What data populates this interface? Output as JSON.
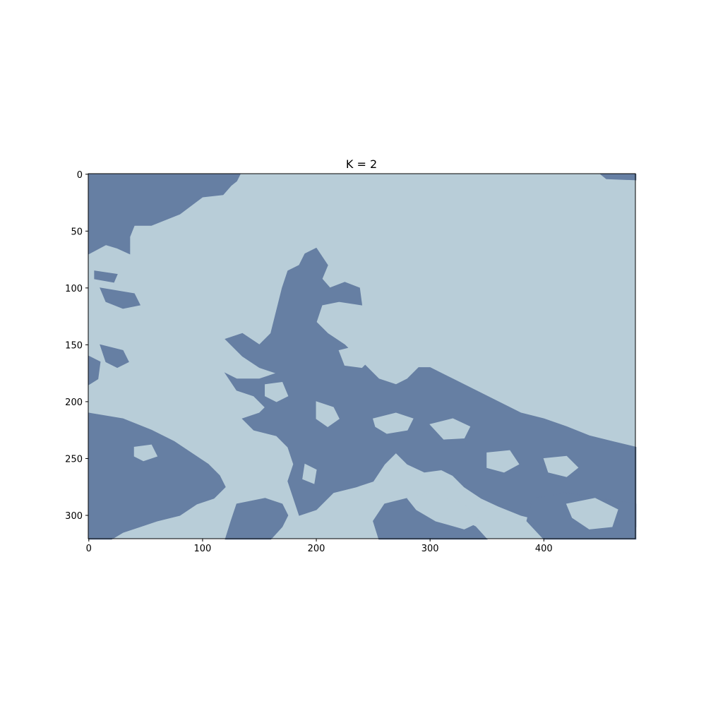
{
  "chart_data": {
    "type": "heatmap",
    "title": "K = 2",
    "xlabel": "",
    "ylabel": "",
    "image_size": {
      "cols": 481,
      "rows": 321
    },
    "xlim": [
      -0.5,
      480.5
    ],
    "ylim": [
      320.5,
      -0.5
    ],
    "xticks": [
      0,
      100,
      200,
      300,
      400
    ],
    "yticks": [
      0,
      50,
      100,
      150,
      200,
      250,
      300
    ],
    "grid": false,
    "legend": "none",
    "cluster_colors": [
      "#b8cdd8",
      "#667fa3"
    ],
    "clusters": [
      {
        "label": 0,
        "color": "#b8cdd8"
      },
      {
        "label": 1,
        "color": "#667fa3"
      }
    ],
    "cluster_1_regions": [
      [
        [
          0,
          0
        ],
        [
          133,
          0
        ],
        [
          130,
          6
        ],
        [
          125,
          10
        ],
        [
          118,
          18
        ],
        [
          100,
          20
        ],
        [
          80,
          35
        ],
        [
          55,
          45
        ],
        [
          40,
          45
        ],
        [
          36,
          55
        ],
        [
          36,
          70
        ],
        [
          25,
          65
        ],
        [
          15,
          62
        ],
        [
          0,
          70
        ]
      ],
      [
        [
          450,
          0
        ],
        [
          481,
          0
        ],
        [
          481,
          5
        ],
        [
          455,
          4
        ]
      ],
      [
        [
          200,
          65
        ],
        [
          190,
          70
        ],
        [
          185,
          80
        ],
        [
          175,
          85
        ],
        [
          170,
          100
        ],
        [
          165,
          120
        ],
        [
          160,
          140
        ],
        [
          150,
          150
        ],
        [
          135,
          140
        ],
        [
          120,
          145
        ],
        [
          135,
          160
        ],
        [
          150,
          170
        ],
        [
          165,
          175
        ],
        [
          150,
          180
        ],
        [
          130,
          180
        ],
        [
          120,
          175
        ],
        [
          130,
          190
        ],
        [
          145,
          195
        ],
        [
          155,
          205
        ],
        [
          150,
          210
        ],
        [
          135,
          215
        ],
        [
          145,
          225
        ],
        [
          165,
          230
        ],
        [
          175,
          240
        ],
        [
          180,
          255
        ],
        [
          175,
          270
        ],
        [
          180,
          285
        ],
        [
          185,
          300
        ],
        [
          200,
          295
        ],
        [
          215,
          280
        ],
        [
          235,
          275
        ],
        [
          250,
          270
        ],
        [
          260,
          255
        ],
        [
          270,
          245
        ],
        [
          280,
          255
        ],
        [
          295,
          262
        ],
        [
          310,
          260
        ],
        [
          320,
          265
        ],
        [
          330,
          275
        ],
        [
          345,
          285
        ],
        [
          360,
          292
        ],
        [
          380,
          300
        ],
        [
          400,
          305
        ],
        [
          420,
          308
        ],
        [
          440,
          300
        ],
        [
          460,
          305
        ],
        [
          481,
          310
        ],
        [
          481,
          240
        ],
        [
          460,
          235
        ],
        [
          440,
          230
        ],
        [
          420,
          222
        ],
        [
          400,
          215
        ],
        [
          380,
          210
        ],
        [
          360,
          200
        ],
        [
          340,
          190
        ],
        [
          320,
          180
        ],
        [
          300,
          170
        ],
        [
          290,
          170
        ],
        [
          280,
          180
        ],
        [
          270,
          185
        ],
        [
          255,
          180
        ],
        [
          245,
          170
        ],
        [
          235,
          160
        ],
        [
          225,
          150
        ],
        [
          210,
          140
        ],
        [
          200,
          130
        ],
        [
          205,
          115
        ],
        [
          220,
          112
        ],
        [
          240,
          115
        ],
        [
          238,
          100
        ],
        [
          225,
          95
        ],
        [
          212,
          100
        ],
        [
          205,
          92
        ],
        [
          210,
          80
        ]
      ],
      [
        [
          0,
          210
        ],
        [
          30,
          215
        ],
        [
          55,
          225
        ],
        [
          75,
          235
        ],
        [
          90,
          245
        ],
        [
          105,
          255
        ],
        [
          115,
          265
        ],
        [
          120,
          275
        ],
        [
          110,
          285
        ],
        [
          95,
          290
        ],
        [
          80,
          300
        ],
        [
          60,
          305
        ],
        [
          45,
          310
        ],
        [
          30,
          315
        ],
        [
          20,
          321
        ],
        [
          0,
          321
        ]
      ],
      [
        [
          130,
          290
        ],
        [
          155,
          285
        ],
        [
          170,
          290
        ],
        [
          175,
          300
        ],
        [
          170,
          310
        ],
        [
          160,
          321
        ],
        [
          120,
          321
        ],
        [
          125,
          305
        ]
      ],
      [
        [
          260,
          290
        ],
        [
          280,
          285
        ],
        [
          300,
          290
        ],
        [
          320,
          300
        ],
        [
          340,
          310
        ],
        [
          350,
          321
        ],
        [
          255,
          321
        ],
        [
          250,
          305
        ]
      ],
      [
        [
          390,
          285
        ],
        [
          420,
          280
        ],
        [
          450,
          285
        ],
        [
          481,
          290
        ],
        [
          481,
          321
        ],
        [
          400,
          321
        ],
        [
          385,
          305
        ]
      ],
      [
        [
          0,
          160
        ],
        [
          10,
          165
        ],
        [
          8,
          180
        ],
        [
          0,
          185
        ]
      ],
      [
        [
          10,
          150
        ],
        [
          30,
          155
        ],
        [
          35,
          165
        ],
        [
          25,
          170
        ],
        [
          15,
          165
        ]
      ],
      [
        [
          5,
          85
        ],
        [
          25,
          88
        ],
        [
          22,
          95
        ],
        [
          5,
          92
        ]
      ],
      [
        [
          10,
          100
        ],
        [
          40,
          105
        ],
        [
          45,
          115
        ],
        [
          30,
          118
        ],
        [
          15,
          112
        ]
      ]
    ],
    "cluster_0_regions": [
      [
        [
          200,
          200
        ],
        [
          215,
          205
        ],
        [
          220,
          215
        ],
        [
          210,
          222
        ],
        [
          200,
          215
        ]
      ],
      [
        [
          250,
          215
        ],
        [
          270,
          210
        ],
        [
          285,
          215
        ],
        [
          280,
          225
        ],
        [
          262,
          228
        ],
        [
          252,
          222
        ]
      ],
      [
        [
          300,
          220
        ],
        [
          320,
          215
        ],
        [
          335,
          222
        ],
        [
          330,
          232
        ],
        [
          312,
          233
        ]
      ],
      [
        [
          350,
          245
        ],
        [
          370,
          243
        ],
        [
          378,
          255
        ],
        [
          365,
          262
        ],
        [
          350,
          258
        ]
      ],
      [
        [
          400,
          250
        ],
        [
          420,
          248
        ],
        [
          430,
          258
        ],
        [
          420,
          266
        ],
        [
          404,
          262
        ]
      ],
      [
        [
          280,
          285
        ],
        [
          300,
          280
        ],
        [
          330,
          290
        ],
        [
          345,
          305
        ],
        [
          330,
          312
        ],
        [
          305,
          305
        ],
        [
          288,
          295
        ]
      ],
      [
        [
          420,
          290
        ],
        [
          445,
          285
        ],
        [
          465,
          295
        ],
        [
          460,
          310
        ],
        [
          440,
          312
        ],
        [
          425,
          302
        ]
      ],
      [
        [
          190,
          255
        ],
        [
          200,
          260
        ],
        [
          198,
          272
        ],
        [
          188,
          268
        ]
      ],
      [
        [
          40,
          240
        ],
        [
          55,
          238
        ],
        [
          60,
          248
        ],
        [
          48,
          252
        ],
        [
          40,
          248
        ]
      ],
      [
        [
          220,
          155
        ],
        [
          240,
          150
        ],
        [
          250,
          160
        ],
        [
          240,
          170
        ],
        [
          225,
          168
        ]
      ],
      [
        [
          155,
          185
        ],
        [
          170,
          183
        ],
        [
          175,
          195
        ],
        [
          165,
          200
        ],
        [
          155,
          195
        ]
      ]
    ]
  }
}
